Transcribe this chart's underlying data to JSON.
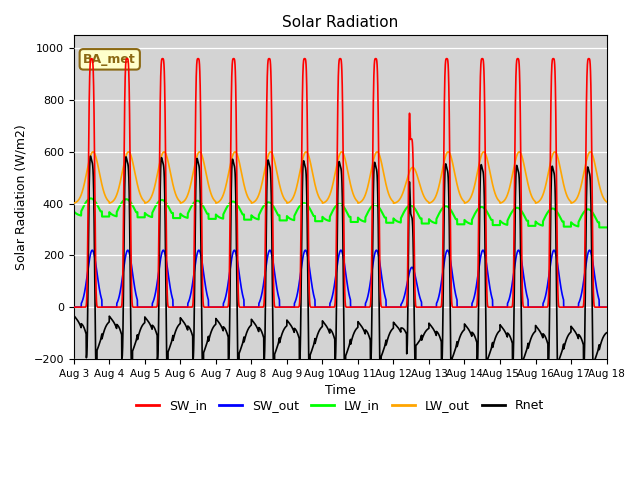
{
  "title": "Solar Radiation",
  "xlabel": "Time",
  "ylabel": "Solar Radiation (W/m2)",
  "ylim": [
    -200,
    1050
  ],
  "xlim_days": [
    0,
    15
  ],
  "bg_color": "#d3d3d3",
  "annotation_text": "BA_met",
  "annotation_bg": "#ffffcc",
  "annotation_border": "#8b6914",
  "colors": {
    "SW_in": "red",
    "SW_out": "blue",
    "LW_in": "#00ff00",
    "LW_out": "orange",
    "Rnet": "black"
  },
  "tick_labels": [
    "Aug 3",
    "Aug 4",
    "Aug 5",
    "Aug 6",
    "Aug 7",
    "Aug 8",
    "Aug 9",
    "Aug 10",
    "Aug 11",
    "Aug 12",
    "Aug 13",
    "Aug 14",
    "Aug 15",
    "Aug 16",
    "Aug 17",
    "Aug 18"
  ],
  "legend_labels": [
    "SW_in",
    "SW_out",
    "LW_in",
    "LW_out",
    "Rnet"
  ]
}
